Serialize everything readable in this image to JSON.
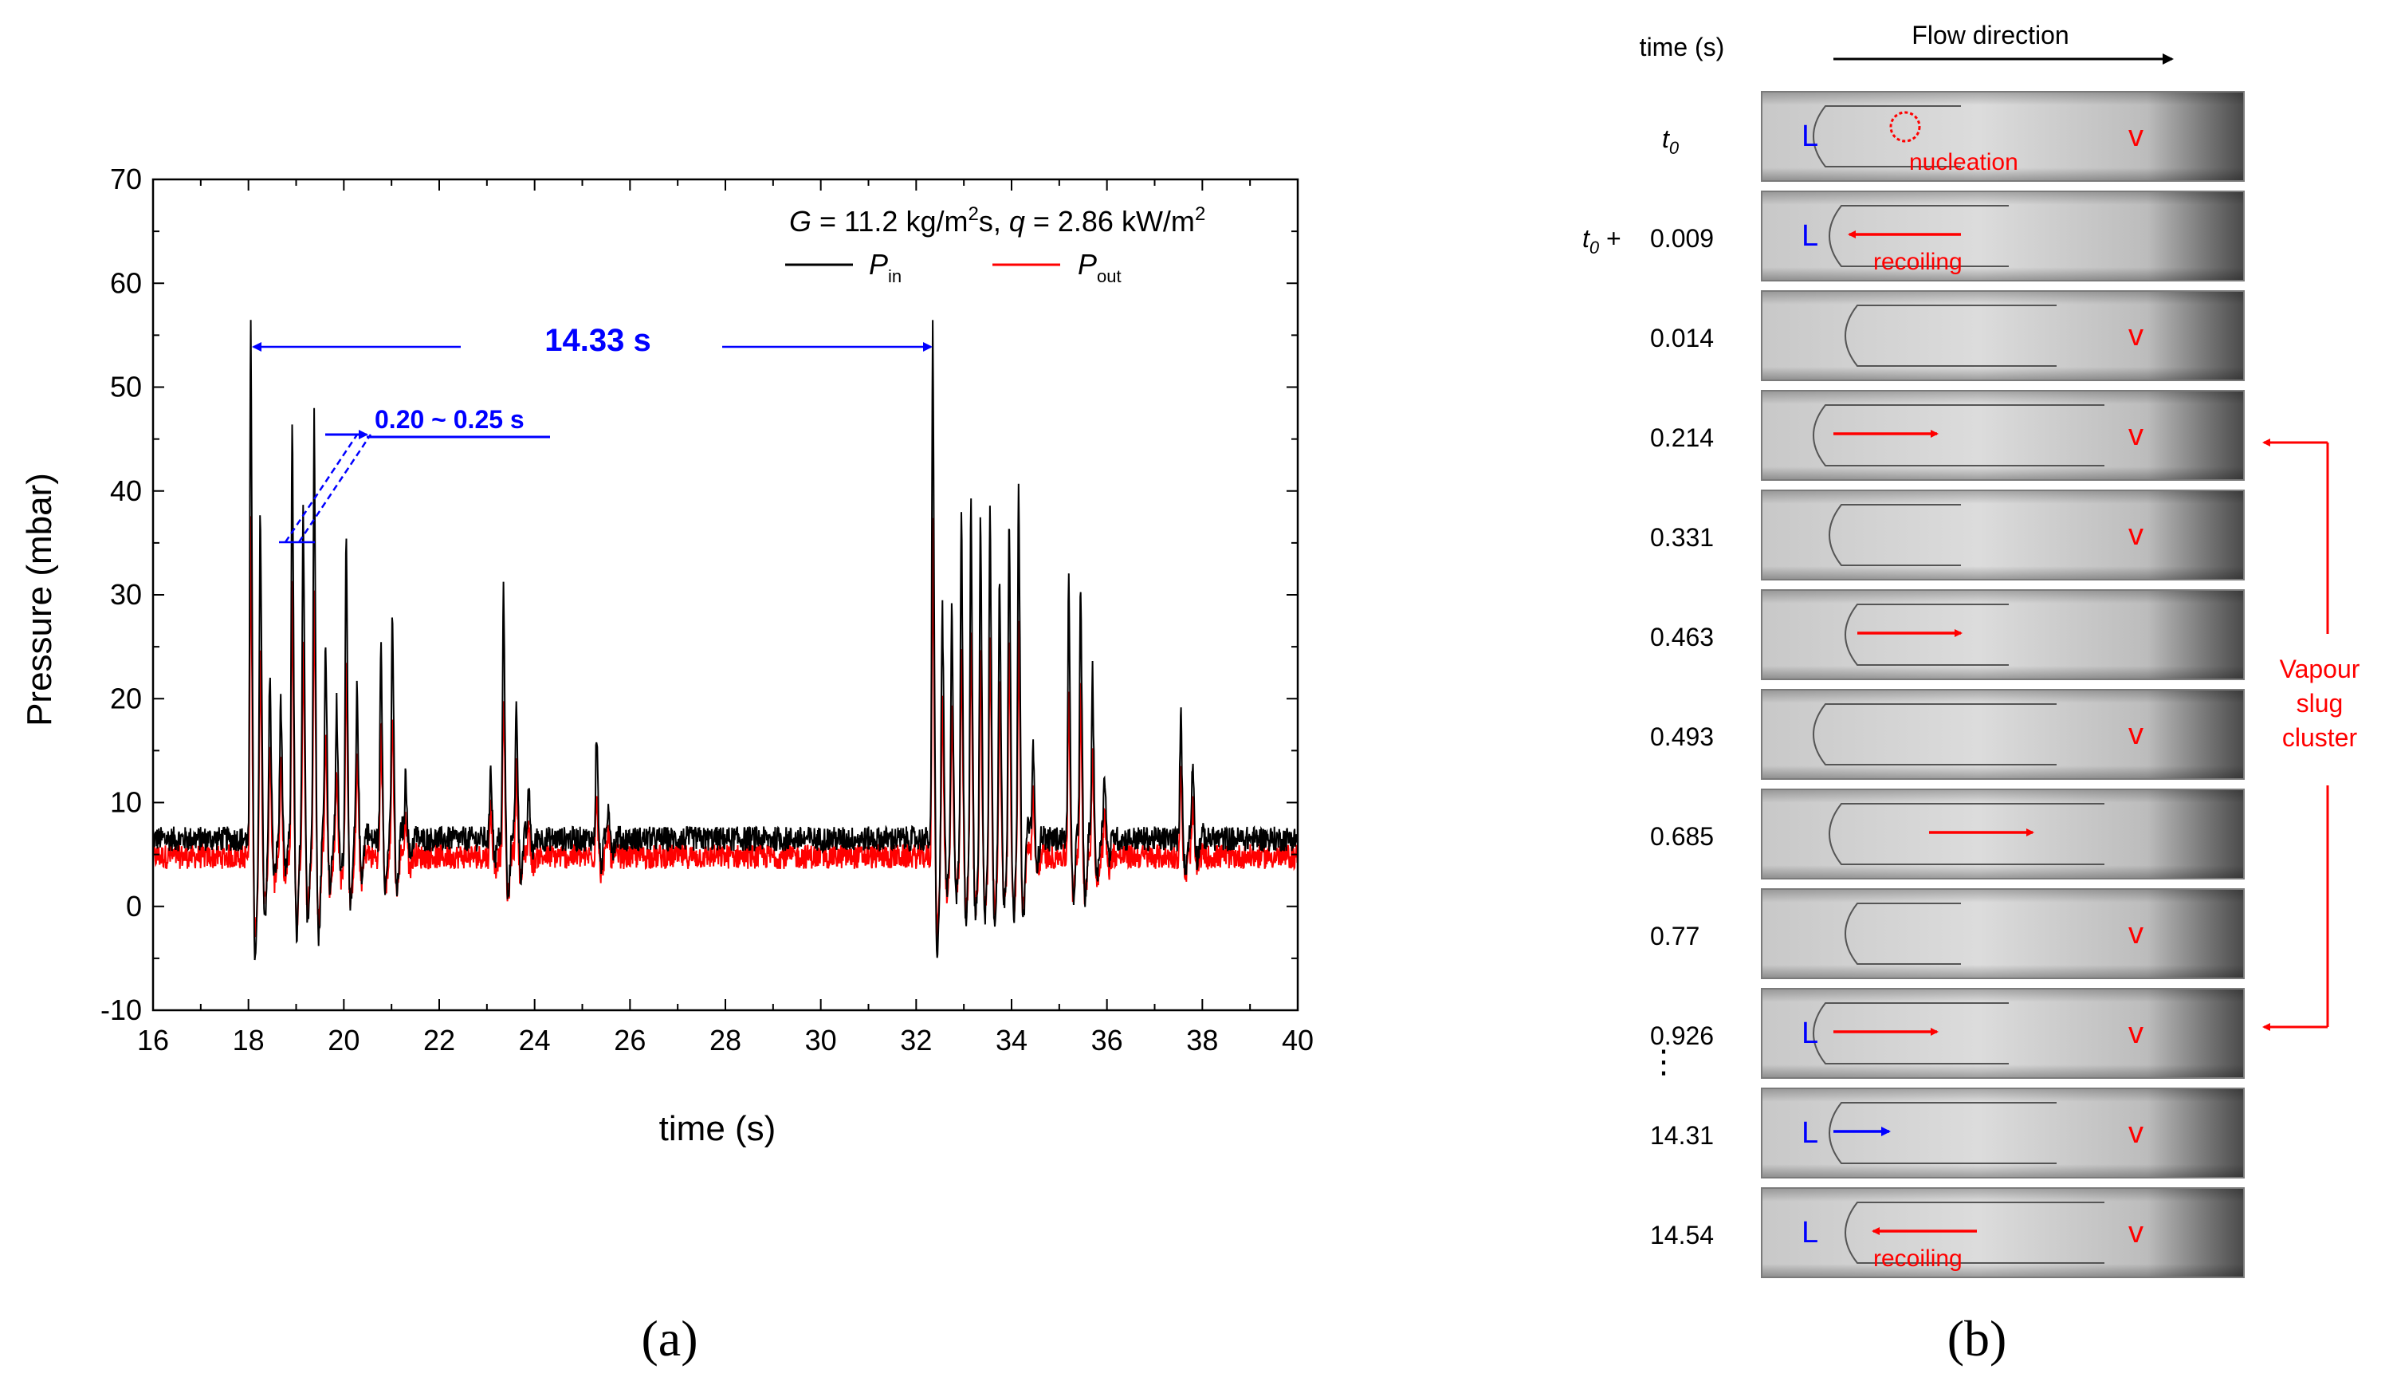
{
  "panel_a": {
    "label": "(a)",
    "xlabel": "time (s)",
    "ylabel": "Pressure (mbar)",
    "xticks": [
      "16",
      "18",
      "20",
      "22",
      "24",
      "26",
      "28",
      "30",
      "32",
      "34",
      "36",
      "38",
      "40"
    ],
    "yticks": [
      "70",
      "60",
      "50",
      "40",
      "30",
      "20",
      "10",
      "0",
      "-10"
    ],
    "cond_G": "G",
    "cond_G_value": " = 11.2 kg/m",
    "cond_G_sup": "2",
    "cond_G_s": "s, ",
    "cond_q": "q",
    "cond_q_value": " = 2.86 kW/m",
    "cond_q_sup": "2",
    "legend_pin": "P",
    "legend_pin_sub": "in",
    "legend_pout": "P",
    "legend_pout_sub": "out",
    "period_label": "14.33 s",
    "spacing_label": "0.20 ~ 0.25 s",
    "colors": {
      "pin": "#000000",
      "pout": "#ff0000",
      "annotation": "#0000ff"
    }
  },
  "chart_data": {
    "type": "line",
    "title": "",
    "xlabel": "time (s)",
    "ylabel": "Pressure (mbar)",
    "xlim": [
      16,
      40
    ],
    "ylim": [
      -10,
      70
    ],
    "series": [
      {
        "name": "P_in",
        "baseline": 6.5,
        "noise": 1.2,
        "bursts": [
          {
            "t": 18.05,
            "amp": 57
          },
          {
            "t": 18.25,
            "amp": 36
          },
          {
            "t": 18.45,
            "amp": 21
          },
          {
            "t": 18.68,
            "amp": 20
          },
          {
            "t": 18.92,
            "amp": 47
          },
          {
            "t": 19.15,
            "amp": 37
          },
          {
            "t": 19.38,
            "amp": 46
          },
          {
            "t": 19.62,
            "amp": 25
          },
          {
            "t": 19.85,
            "amp": 19
          },
          {
            "t": 20.05,
            "amp": 36
          },
          {
            "t": 20.28,
            "amp": 20
          },
          {
            "t": 20.78,
            "amp": 26
          },
          {
            "t": 21.02,
            "amp": 28
          },
          {
            "t": 21.3,
            "amp": 13
          },
          {
            "t": 23.08,
            "amp": 14
          },
          {
            "t": 23.35,
            "amp": 31
          },
          {
            "t": 23.62,
            "amp": 20
          },
          {
            "t": 23.88,
            "amp": 11
          },
          {
            "t": 25.3,
            "amp": 17
          },
          {
            "t": 25.55,
            "amp": 10
          },
          {
            "t": 32.35,
            "amp": 56
          },
          {
            "t": 32.55,
            "amp": 27
          },
          {
            "t": 32.75,
            "amp": 28
          },
          {
            "t": 32.95,
            "amp": 37
          },
          {
            "t": 33.15,
            "amp": 38
          },
          {
            "t": 33.35,
            "amp": 36
          },
          {
            "t": 33.55,
            "amp": 38
          },
          {
            "t": 33.75,
            "amp": 30
          },
          {
            "t": 33.95,
            "amp": 37
          },
          {
            "t": 34.15,
            "amp": 39
          },
          {
            "t": 34.45,
            "amp": 16
          },
          {
            "t": 35.2,
            "amp": 31
          },
          {
            "t": 35.45,
            "amp": 31
          },
          {
            "t": 35.7,
            "amp": 22
          },
          {
            "t": 35.95,
            "amp": 13
          },
          {
            "t": 37.55,
            "amp": 19
          },
          {
            "t": 37.8,
            "amp": 14
          }
        ]
      },
      {
        "name": "P_out",
        "baseline": 4.8,
        "noise": 1.2,
        "peak_ratio": 0.62
      }
    ],
    "annotations": [
      {
        "text": "14.33 s",
        "from": 18.05,
        "to": 32.35,
        "y": 54
      },
      {
        "text": "0.20 ~ 0.25 s",
        "from": 19.0,
        "to": 20.3,
        "y": 45.5
      }
    ],
    "legend": [
      "P_in",
      "P_out"
    ]
  },
  "panel_b": {
    "label": "(b)",
    "time_header": "time (s)",
    "flow_direction": "Flow direction",
    "t0_prefix": "t",
    "t0_sub": "0",
    "t0_plus": " +",
    "vapour_label": [
      "Vapour",
      "slug",
      "cluster"
    ],
    "frames": [
      {
        "time": "t0",
        "marks": [
          {
            "t": "L",
            "c": "blue"
          },
          {
            "t": "nucleation",
            "c": "red"
          },
          {
            "t": "v",
            "c": "red"
          }
        ]
      },
      {
        "time": "0.009",
        "marks": [
          {
            "t": "L",
            "c": "blue"
          },
          {
            "t": "recoiling",
            "c": "red"
          }
        ]
      },
      {
        "time": "0.014",
        "marks": [
          {
            "t": "v",
            "c": "red"
          }
        ]
      },
      {
        "time": "0.214",
        "marks": [
          {
            "t": "v",
            "c": "red"
          }
        ]
      },
      {
        "time": "0.331",
        "marks": [
          {
            "t": "v",
            "c": "red"
          }
        ]
      },
      {
        "time": "0.463",
        "marks": []
      },
      {
        "time": "0.493",
        "marks": [
          {
            "t": "v",
            "c": "red"
          }
        ]
      },
      {
        "time": "0.685",
        "marks": []
      },
      {
        "time": "0.77",
        "marks": [
          {
            "t": "v",
            "c": "red"
          }
        ]
      },
      {
        "time": "0.926",
        "marks": [
          {
            "t": "L",
            "c": "blue"
          },
          {
            "t": "v",
            "c": "red"
          }
        ]
      },
      {
        "time": "14.31",
        "marks": [
          {
            "t": "L",
            "c": "blue"
          },
          {
            "t": "v",
            "c": "red"
          }
        ]
      },
      {
        "time": "14.54",
        "marks": [
          {
            "t": "L",
            "c": "blue"
          },
          {
            "t": "recoiling",
            "c": "red"
          },
          {
            "t": "v",
            "c": "red"
          }
        ]
      }
    ],
    "ellipsis": "⋮"
  }
}
